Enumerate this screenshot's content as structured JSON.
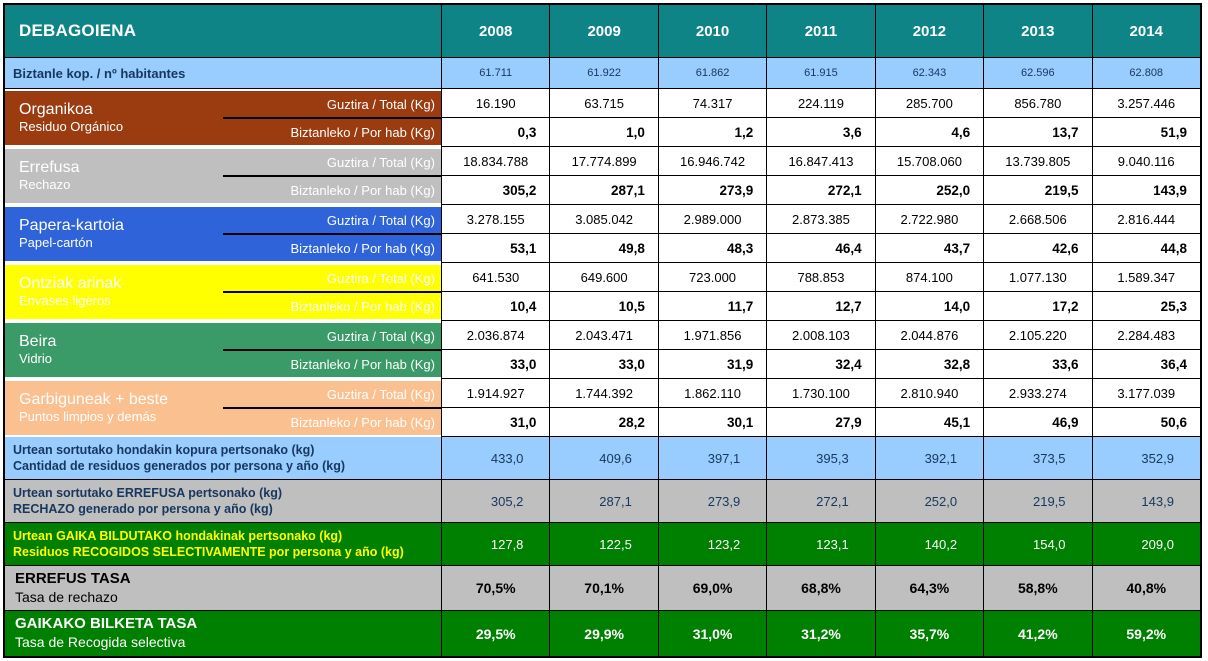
{
  "colors": {
    "header_bg": "#0E8486",
    "light_blue": "#99CCFF",
    "navy": "#17375E",
    "white": "#FFFFFF",
    "black": "#000000"
  },
  "table": {
    "title": "DEBAGOIENA",
    "years": [
      "2008",
      "2009",
      "2010",
      "2011",
      "2012",
      "2013",
      "2014"
    ],
    "population_row": {
      "label": "Biztanle kop. / nº habitantes",
      "values": [
        "61.711",
        "61.922",
        "61.862",
        "61.915",
        "62.343",
        "62.596",
        "62.808"
      ]
    },
    "row_labels": {
      "total": "Guztira / Total (Kg)",
      "per_capita": "Biztanleko / Por hab (Kg)"
    },
    "categories": [
      {
        "title": "Organikoa",
        "subtitle": "Residuo Orgánico",
        "color": "#9A3B10",
        "total": [
          "16.190",
          "63.715",
          "74.317",
          "224.119",
          "285.700",
          "856.780",
          "3.257.446"
        ],
        "per_capita": [
          "0,3",
          "1,0",
          "1,2",
          "3,6",
          "4,6",
          "13,7",
          "51,9"
        ]
      },
      {
        "title": "Errefusa",
        "subtitle": "Rechazo",
        "color": "#BFBFBF",
        "total": [
          "18.834.788",
          "17.774.899",
          "16.946.742",
          "16.847.413",
          "15.708.060",
          "13.739.805",
          "9.040.116"
        ],
        "per_capita": [
          "305,2",
          "287,1",
          "273,9",
          "272,1",
          "252,0",
          "219,5",
          "143,9"
        ]
      },
      {
        "title": "Papera-kartoia",
        "subtitle": "Papel-cartón",
        "color": "#2E63D9",
        "total": [
          "3.278.155",
          "3.085.042",
          "2.989.000",
          "2.873.385",
          "2.722.980",
          "2.668.506",
          "2.816.444"
        ],
        "per_capita": [
          "53,1",
          "49,8",
          "48,3",
          "46,4",
          "43,7",
          "42,6",
          "44,8"
        ]
      },
      {
        "title": "Ontziak arinak",
        "subtitle": "Envases ligéros",
        "color": "#FFFF00",
        "total": [
          "641.530",
          "649.600",
          "723.000",
          "788.853",
          "874.100",
          "1.077.130",
          "1.589.347"
        ],
        "per_capita": [
          "10,4",
          "10,5",
          "11,7",
          "12,7",
          "14,0",
          "17,2",
          "25,3"
        ]
      },
      {
        "title": "Beira",
        "subtitle": "Vidrio",
        "color": "#3A9A68",
        "total": [
          "2.036.874",
          "2.043.471",
          "1.971.856",
          "2.008.103",
          "2.044.876",
          "2.105.220",
          "2.284.483"
        ],
        "per_capita": [
          "33,0",
          "33,0",
          "31,9",
          "32,4",
          "32,8",
          "33,6",
          "36,4"
        ]
      },
      {
        "title": "Garbiguneak + beste",
        "subtitle": "Puntos limpios y demás",
        "color": "#FAC08F",
        "total": [
          "1.914.927",
          "1.744.392",
          "1.862.110",
          "1.730.100",
          "2.810.940",
          "2.933.274",
          "3.177.039"
        ],
        "per_capita": [
          "31,0",
          "28,2",
          "30,1",
          "27,9",
          "45,1",
          "46,9",
          "50,6"
        ]
      }
    ],
    "summary_rows": [
      {
        "label_eu": "Urtean sortutako hondakin kopura pertsonako (kg)",
        "label_es": "Cantidad de residuos generados por persona y año (kg)",
        "bg": "#99CCFF",
        "fg": "#17375E",
        "value_fg": "#17375E",
        "values": [
          "433,0",
          "409,6",
          "397,1",
          "395,3",
          "392,1",
          "373,5",
          "352,9"
        ]
      },
      {
        "label_eu": "Urtean sortutako ERREFUSA pertsonako (kg)",
        "label_es": "RECHAZO generado por persona y año (kg)",
        "bg": "#BFBFBF",
        "fg": "#17375E",
        "value_fg": "#17375E",
        "values": [
          "305,2",
          "287,1",
          "273,9",
          "272,1",
          "252,0",
          "219,5",
          "143,9"
        ]
      },
      {
        "label_eu": "Urtean GAIKA BILDUTAKO hondakinak pertsonako (kg)",
        "label_es": "Residuos RECOGIDOS SELECTIVAMENTE por persona y año (kg)",
        "bg": "#008000",
        "fg": "#FFFF00",
        "value_fg": "#FFFFFF",
        "values": [
          "127,8",
          "122,5",
          "123,2",
          "123,1",
          "140,2",
          "154,0",
          "209,0"
        ]
      }
    ],
    "rate_rows": [
      {
        "title": "ERREFUS TASA",
        "subtitle": "Tasa de rechazo",
        "bg": "#BFBFBF",
        "fg": "#000000",
        "value_fg": "#000000",
        "values": [
          "70,5%",
          "70,1%",
          "69,0%",
          "68,8%",
          "64,3%",
          "58,8%",
          "40,8%"
        ]
      },
      {
        "title": "GAIKAKO BILKETA TASA",
        "subtitle": "Tasa de Recogida selectiva",
        "bg": "#008000",
        "fg": "#FFFFFF",
        "value_fg": "#FFFFFF",
        "values": [
          "29,5%",
          "29,9%",
          "31,0%",
          "31,2%",
          "35,7%",
          "41,2%",
          "59,2%"
        ]
      }
    ]
  },
  "chart_data": {
    "type": "table",
    "title": "DEBAGOIENA",
    "columns": [
      "2008",
      "2009",
      "2010",
      "2011",
      "2012",
      "2013",
      "2014"
    ],
    "rows": [
      {
        "label": "Biztanle kop. / nº habitantes",
        "values": [
          61711,
          61922,
          61862,
          61915,
          62343,
          62596,
          62808
        ]
      },
      {
        "label": "Organikoa / Residuo Orgánico - Guztira / Total (Kg)",
        "values": [
          16190,
          63715,
          74317,
          224119,
          285700,
          856780,
          3257446
        ]
      },
      {
        "label": "Organikoa / Residuo Orgánico - Biztanleko / Por hab (Kg)",
        "values": [
          0.3,
          1.0,
          1.2,
          3.6,
          4.6,
          13.7,
          51.9
        ]
      },
      {
        "label": "Errefusa / Rechazo - Guztira / Total (Kg)",
        "values": [
          18834788,
          17774899,
          16946742,
          16847413,
          15708060,
          13739805,
          9040116
        ]
      },
      {
        "label": "Errefusa / Rechazo - Biztanleko / Por hab (Kg)",
        "values": [
          305.2,
          287.1,
          273.9,
          272.1,
          252.0,
          219.5,
          143.9
        ]
      },
      {
        "label": "Papera-kartoia / Papel-cartón - Guztira / Total (Kg)",
        "values": [
          3278155,
          3085042,
          2989000,
          2873385,
          2722980,
          2668506,
          2816444
        ]
      },
      {
        "label": "Papera-kartoia / Papel-cartón - Biztanleko / Por hab (Kg)",
        "values": [
          53.1,
          49.8,
          48.3,
          46.4,
          43.7,
          42.6,
          44.8
        ]
      },
      {
        "label": "Ontziak arinak / Envases ligéros - Guztira / Total (Kg)",
        "values": [
          641530,
          649600,
          723000,
          788853,
          874100,
          1077130,
          1589347
        ]
      },
      {
        "label": "Ontziak arinak / Envases ligéros - Biztanleko / Por hab (Kg)",
        "values": [
          10.4,
          10.5,
          11.7,
          12.7,
          14.0,
          17.2,
          25.3
        ]
      },
      {
        "label": "Beira / Vidrio - Guztira / Total (Kg)",
        "values": [
          2036874,
          2043471,
          1971856,
          2008103,
          2044876,
          2105220,
          2284483
        ]
      },
      {
        "label": "Beira / Vidrio - Biztanleko / Por hab (Kg)",
        "values": [
          33.0,
          33.0,
          31.9,
          32.4,
          32.8,
          33.6,
          36.4
        ]
      },
      {
        "label": "Garbiguneak + beste / Puntos limpios y demás - Guztira / Total (Kg)",
        "values": [
          1914927,
          1744392,
          1862110,
          1730100,
          2810940,
          2933274,
          3177039
        ]
      },
      {
        "label": "Garbiguneak + beste / Puntos limpios y demás - Biztanleko / Por hab (Kg)",
        "values": [
          31.0,
          28.2,
          30.1,
          27.9,
          45.1,
          46.9,
          50.6
        ]
      },
      {
        "label": "Urtean sortutako hondakin kopura pertsonako (kg)",
        "values": [
          433.0,
          409.6,
          397.1,
          395.3,
          392.1,
          373.5,
          352.9
        ]
      },
      {
        "label": "Urtean sortutako ERREFUSA pertsonako (kg)",
        "values": [
          305.2,
          287.1,
          273.9,
          272.1,
          252.0,
          219.5,
          143.9
        ]
      },
      {
        "label": "Urtean GAIKA BILDUTAKO hondakinak pertsonako (kg)",
        "values": [
          127.8,
          122.5,
          123.2,
          123.1,
          140.2,
          154.0,
          209.0
        ]
      },
      {
        "label": "ERREFUS TASA / Tasa de rechazo (%)",
        "values": [
          70.5,
          70.1,
          69.0,
          68.8,
          64.3,
          58.8,
          40.8
        ]
      },
      {
        "label": "GAIKAKO BILKETA TASA / Tasa de Recogida selectiva (%)",
        "values": [
          29.5,
          29.9,
          31.0,
          31.2,
          35.7,
          41.2,
          59.2
        ]
      }
    ]
  }
}
